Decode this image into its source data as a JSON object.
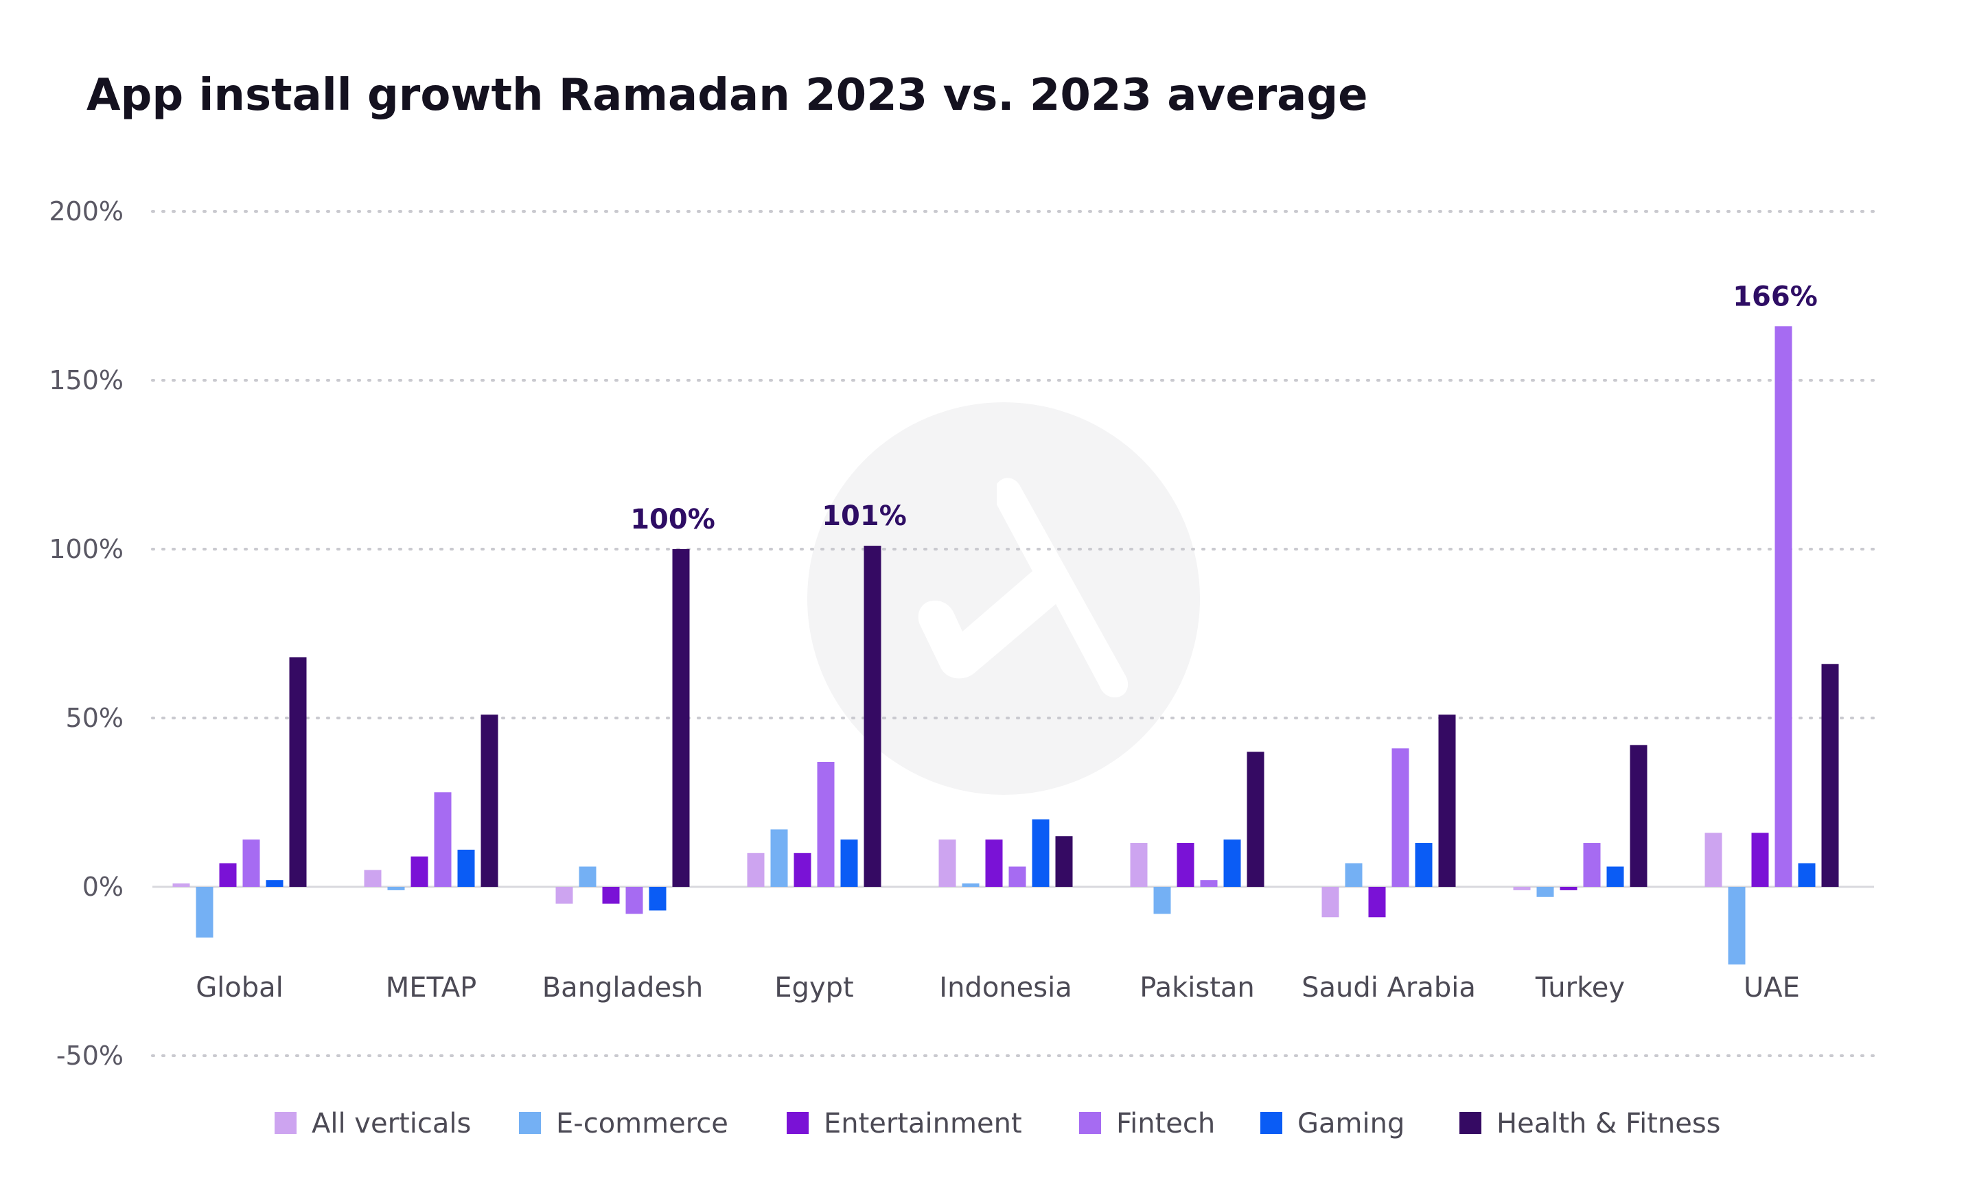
{
  "chart_data": {
    "type": "bar",
    "title": "App install growth Ramadan 2023 vs. 2023 average",
    "xlabel": "",
    "ylabel": "",
    "ylim": [
      -50,
      200
    ],
    "yticks": [
      200,
      150,
      100,
      50,
      0,
      -50
    ],
    "ytick_labels": [
      "200%",
      "150%",
      "100%",
      "50%",
      "0%",
      "-50%"
    ],
    "grid": true,
    "legend_position": "bottom",
    "categories": [
      "Global",
      "METAP",
      "Bangladesh",
      "Egypt",
      "Indonesia",
      "Pakistan",
      "Saudi Arabia",
      "Turkey",
      "UAE"
    ],
    "series": [
      {
        "name": "All verticals",
        "color": "#cda4f0",
        "values": [
          1,
          5,
          -5,
          10,
          14,
          13,
          -9,
          -1,
          16
        ]
      },
      {
        "name": "E-commerce",
        "color": "#74b0f4",
        "values": [
          -15,
          -1,
          6,
          17,
          1,
          -8,
          7,
          -3,
          -23
        ]
      },
      {
        "name": "Entertainment",
        "color": "#7a12d6",
        "values": [
          7,
          9,
          -5,
          10,
          14,
          13,
          -9,
          -1,
          16
        ]
      },
      {
        "name": "Fintech",
        "color": "#a66bf2",
        "values": [
          14,
          28,
          -8,
          37,
          6,
          2,
          41,
          13,
          166
        ]
      },
      {
        "name": "Gaming",
        "color": "#0a5cf5",
        "values": [
          2,
          11,
          -7,
          14,
          20,
          14,
          13,
          6,
          7
        ]
      },
      {
        "name": "Health & Fitness",
        "color": "#350a63",
        "values": [
          68,
          51,
          100,
          101,
          15,
          40,
          51,
          42,
          66
        ]
      }
    ],
    "annotations": [
      {
        "category": "Bangladesh",
        "series": "Health & Fitness",
        "text": "100%"
      },
      {
        "category": "Egypt",
        "series": "Health & Fitness",
        "text": "101%"
      },
      {
        "category": "UAE",
        "series": "Fintech",
        "text": "166%"
      }
    ]
  }
}
